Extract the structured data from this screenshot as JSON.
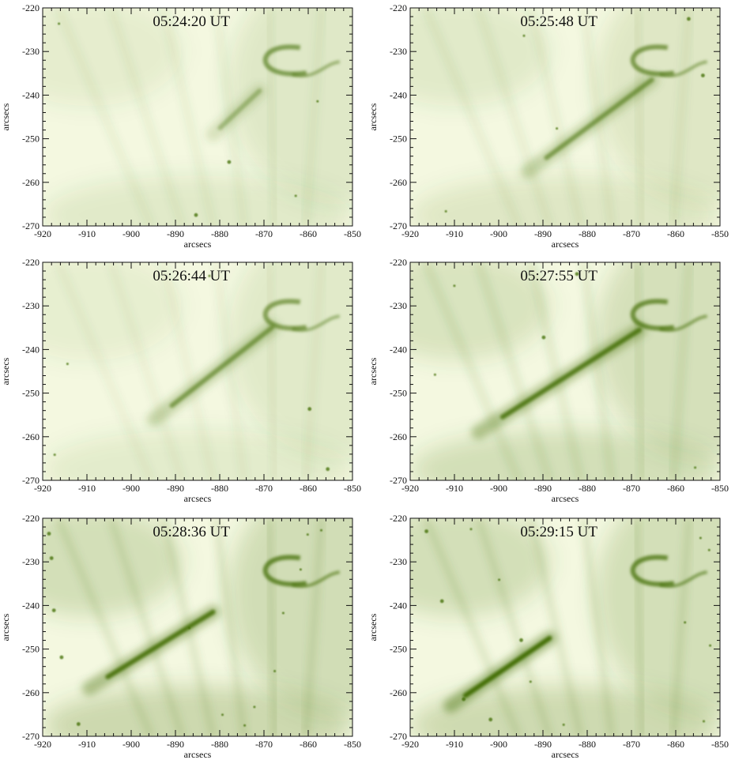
{
  "figure": {
    "panels": [
      {
        "timestamp": "05:24:20 UT",
        "xlabel": "arcsecs",
        "ylabel": "arcsecs",
        "xticks": [
          "-920",
          "-910",
          "-900",
          "-890",
          "-880",
          "-870",
          "-860",
          "-850"
        ],
        "yticks": [
          "-220",
          "-230",
          "-240",
          "-250",
          "-260",
          "-270"
        ]
      },
      {
        "timestamp": "05:25:48 UT",
        "xlabel": "arcsecs",
        "ylabel": "arcsecs",
        "xticks": [
          "-920",
          "-910",
          "-900",
          "-890",
          "-880",
          "-870",
          "-860",
          "-850"
        ],
        "yticks": [
          "-220",
          "-230",
          "-240",
          "-250",
          "-260",
          "-270"
        ]
      },
      {
        "timestamp": "05:26:44 UT",
        "xlabel": "arcsecs",
        "ylabel": "arcsecs",
        "xticks": [
          "-920",
          "-910",
          "-900",
          "-890",
          "-880",
          "-870",
          "-860",
          "-850"
        ],
        "yticks": [
          "-220",
          "-230",
          "-240",
          "-250",
          "-260",
          "-270"
        ]
      },
      {
        "timestamp": "05:27:55 UT",
        "xlabel": "arcsecs",
        "ylabel": "arcsecs",
        "xticks": [
          "-920",
          "-910",
          "-900",
          "-890",
          "-880",
          "-870",
          "-860",
          "-850"
        ],
        "yticks": [
          "-220",
          "-230",
          "-240",
          "-250",
          "-260",
          "-270"
        ]
      },
      {
        "timestamp": "05:28:36 UT",
        "xlabel": "arcsecs",
        "ylabel": "arcsecs",
        "xticks": [
          "-920",
          "-910",
          "-900",
          "-890",
          "-880",
          "-870",
          "-860",
          "-850"
        ],
        "yticks": [
          "-220",
          "-230",
          "-240",
          "-250",
          "-260",
          "-270"
        ]
      },
      {
        "timestamp": "05:29:15 UT",
        "xlabel": "arcsecs",
        "ylabel": "arcsecs",
        "xticks": [
          "-920",
          "-910",
          "-900",
          "-890",
          "-880",
          "-870",
          "-860",
          "-850"
        ],
        "yticks": [
          "-220",
          "-230",
          "-240",
          "-250",
          "-260",
          "-270"
        ]
      }
    ]
  },
  "colors": {
    "background": "#f4f8e0",
    "feature": "#3f6b00",
    "axis": "#111111"
  }
}
